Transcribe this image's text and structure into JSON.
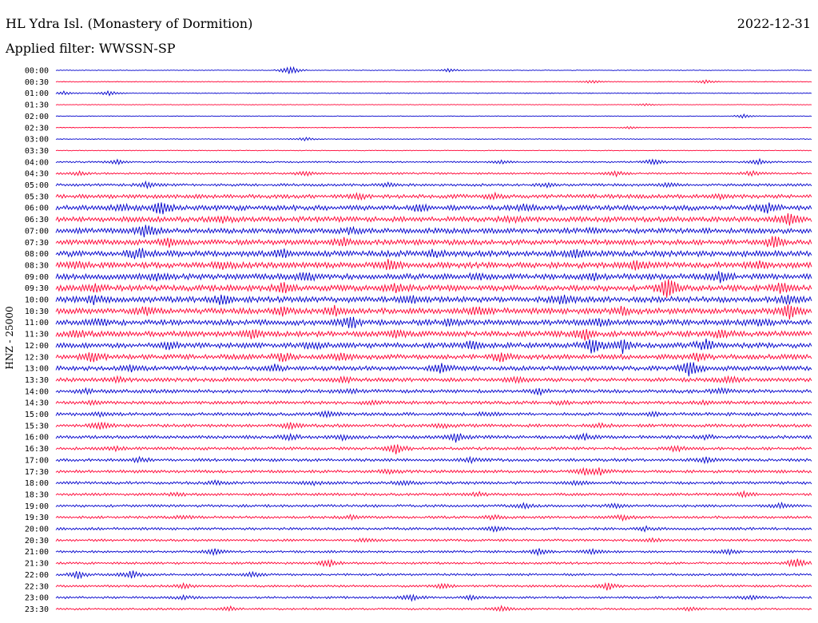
{
  "header": {
    "station": "HL Ydra Isl. (Monastery of Dormition)",
    "date": "2022-12-31",
    "filter": "Applied filter: WWSSN-SP"
  },
  "chart_data": {
    "type": "line",
    "ylabel": "HNZ - 25000",
    "colors": [
      "#0000cc",
      "#ff0033"
    ],
    "rows": [
      "00:00",
      "00:30",
      "01:00",
      "01:30",
      "02:00",
      "02:30",
      "03:00",
      "03:30",
      "04:00",
      "04:30",
      "05:00",
      "05:30",
      "06:00",
      "06:30",
      "07:00",
      "07:30",
      "08:00",
      "08:30",
      "09:00",
      "09:30",
      "10:00",
      "10:30",
      "11:00",
      "11:30",
      "12:00",
      "12:30",
      "13:00",
      "13:30",
      "14:00",
      "14:30",
      "15:00",
      "15:30",
      "16:00",
      "16:30",
      "17:00",
      "17:30",
      "18:00",
      "18:30",
      "19:00",
      "19:30",
      "20:00",
      "20:30",
      "21:00",
      "21:30",
      "22:00",
      "22:30",
      "23:00",
      "23:30"
    ],
    "noise": [
      0.4,
      0.5,
      0.5,
      0.4,
      0.4,
      0.4,
      0.5,
      0.5,
      1.0,
      1.2,
      1.6,
      2.4,
      3.2,
      3.2,
      3.2,
      3.2,
      3.6,
      3.6,
      3.6,
      3.6,
      3.6,
      3.6,
      3.4,
      3.4,
      3.2,
      3.0,
      2.8,
      2.4,
      2.2,
      2.0,
      2.0,
      2.0,
      2.0,
      1.8,
      1.8,
      1.8,
      1.8,
      1.6,
      1.6,
      1.6,
      1.6,
      1.4,
      1.4,
      1.4,
      1.4,
      1.4,
      1.4,
      1.2
    ],
    "events": [
      [
        [
          0.31,
          8
        ],
        [
          0.52,
          3
        ]
      ],
      [
        [
          0.71,
          3
        ],
        [
          0.86,
          3
        ]
      ],
      [
        [
          0.01,
          3
        ],
        [
          0.07,
          4
        ]
      ],
      [
        [
          0.78,
          2
        ]
      ],
      [
        [
          0.91,
          3
        ]
      ],
      [
        [
          0.76,
          2
        ]
      ],
      [
        [
          0.33,
          3
        ]
      ],
      [],
      [
        [
          0.08,
          4
        ],
        [
          0.59,
          3
        ],
        [
          0.79,
          5
        ],
        [
          0.93,
          4
        ]
      ],
      [
        [
          0.03,
          3
        ],
        [
          0.33,
          4
        ],
        [
          0.74,
          4
        ],
        [
          0.92,
          4
        ]
      ],
      [
        [
          0.12,
          4
        ],
        [
          0.44,
          3
        ],
        [
          0.65,
          3
        ],
        [
          0.81,
          3
        ]
      ],
      [
        [
          0.4,
          4
        ],
        [
          0.58,
          4
        ],
        [
          0.88,
          3
        ]
      ],
      [
        [
          0.09,
          4
        ],
        [
          0.14,
          10
        ],
        [
          0.48,
          6
        ],
        [
          0.62,
          5
        ],
        [
          0.94,
          8
        ]
      ],
      [
        [
          0.22,
          5
        ],
        [
          0.6,
          4
        ],
        [
          0.97,
          10
        ]
      ],
      [
        [
          0.12,
          10
        ],
        [
          0.39,
          4
        ],
        [
          0.71,
          3
        ]
      ],
      [
        [
          0.15,
          6
        ],
        [
          0.38,
          6
        ],
        [
          0.95,
          10
        ]
      ],
      [
        [
          0.11,
          8
        ],
        [
          0.3,
          6
        ],
        [
          0.5,
          5
        ],
        [
          0.69,
          5
        ]
      ],
      [
        [
          0.03,
          5
        ],
        [
          0.22,
          6
        ],
        [
          0.44,
          7
        ],
        [
          0.77,
          6
        ],
        [
          0.93,
          5
        ]
      ],
      [
        [
          0.13,
          5
        ],
        [
          0.33,
          6
        ],
        [
          0.56,
          4
        ],
        [
          0.71,
          5
        ],
        [
          0.88,
          9
        ]
      ],
      [
        [
          0.05,
          5
        ],
        [
          0.3,
          8
        ],
        [
          0.45,
          6
        ],
        [
          0.81,
          16
        ],
        [
          0.96,
          8
        ]
      ],
      [
        [
          0.05,
          6
        ],
        [
          0.22,
          8
        ],
        [
          0.47,
          6
        ],
        [
          0.67,
          7
        ],
        [
          0.97,
          7
        ]
      ],
      [
        [
          0.12,
          6
        ],
        [
          0.3,
          5
        ],
        [
          0.37,
          7
        ],
        [
          0.56,
          5
        ],
        [
          0.75,
          6
        ],
        [
          0.97,
          10
        ]
      ],
      [
        [
          0.06,
          5
        ],
        [
          0.39,
          9
        ],
        [
          0.52,
          4
        ],
        [
          0.72,
          6
        ],
        [
          0.93,
          4
        ]
      ],
      [
        [
          0.03,
          5
        ],
        [
          0.26,
          6
        ],
        [
          0.45,
          5
        ],
        [
          0.7,
          9
        ],
        [
          0.88,
          5
        ]
      ],
      [
        [
          0.15,
          5
        ],
        [
          0.34,
          5
        ],
        [
          0.55,
          6
        ],
        [
          0.71,
          12
        ],
        [
          0.75,
          10
        ],
        [
          0.86,
          9
        ]
      ],
      [
        [
          0.05,
          8
        ],
        [
          0.3,
          6
        ],
        [
          0.38,
          5
        ],
        [
          0.59,
          7
        ],
        [
          0.85,
          7
        ]
      ],
      [
        [
          0.1,
          4
        ],
        [
          0.29,
          5
        ],
        [
          0.51,
          8
        ],
        [
          0.84,
          14
        ]
      ],
      [
        [
          0.08,
          4
        ],
        [
          0.38,
          4
        ],
        [
          0.61,
          4
        ],
        [
          0.89,
          5
        ]
      ],
      [
        [
          0.04,
          3
        ],
        [
          0.39,
          3
        ],
        [
          0.64,
          4
        ],
        [
          0.88,
          4
        ]
      ],
      [
        [
          0.05,
          3
        ],
        [
          0.42,
          3
        ],
        [
          0.67,
          3
        ],
        [
          0.86,
          3
        ]
      ],
      [
        [
          0.06,
          3
        ],
        [
          0.36,
          4
        ],
        [
          0.57,
          3
        ],
        [
          0.79,
          3
        ]
      ],
      [
        [
          0.06,
          7
        ],
        [
          0.31,
          4
        ],
        [
          0.51,
          3
        ],
        [
          0.72,
          3
        ]
      ],
      [
        [
          0.31,
          4
        ],
        [
          0.38,
          4
        ],
        [
          0.53,
          7
        ],
        [
          0.7,
          4
        ],
        [
          0.86,
          3
        ]
      ],
      [
        [
          0.08,
          3
        ],
        [
          0.45,
          8
        ],
        [
          0.82,
          4
        ]
      ],
      [
        [
          0.11,
          4
        ],
        [
          0.55,
          4
        ],
        [
          0.86,
          4
        ]
      ],
      [
        [
          0.44,
          4
        ],
        [
          0.7,
          5
        ],
        [
          0.72,
          5
        ]
      ],
      [
        [
          0.21,
          3
        ],
        [
          0.34,
          3
        ],
        [
          0.46,
          3
        ],
        [
          0.69,
          3
        ]
      ],
      [
        [
          0.16,
          3
        ],
        [
          0.56,
          3
        ],
        [
          0.91,
          4
        ]
      ],
      [
        [
          0.62,
          4
        ],
        [
          0.74,
          3
        ],
        [
          0.96,
          4
        ]
      ],
      [
        [
          0.17,
          3
        ],
        [
          0.39,
          3
        ],
        [
          0.58,
          4
        ],
        [
          0.75,
          4
        ]
      ],
      [
        [
          0.58,
          4
        ],
        [
          0.78,
          3
        ]
      ],
      [
        [
          0.41,
          3
        ],
        [
          0.79,
          3
        ]
      ],
      [
        [
          0.21,
          5
        ],
        [
          0.64,
          5
        ],
        [
          0.71,
          4
        ],
        [
          0.89,
          4
        ]
      ],
      [
        [
          0.36,
          6
        ],
        [
          0.98,
          8
        ]
      ],
      [
        [
          0.03,
          6
        ],
        [
          0.1,
          6
        ],
        [
          0.26,
          4
        ]
      ],
      [
        [
          0.17,
          4
        ],
        [
          0.51,
          4
        ],
        [
          0.73,
          6
        ]
      ],
      [
        [
          0.17,
          3
        ],
        [
          0.47,
          5
        ],
        [
          0.55,
          3
        ],
        [
          0.92,
          3
        ]
      ],
      [
        [
          0.23,
          4
        ],
        [
          0.59,
          5
        ],
        [
          0.84,
          3
        ]
      ]
    ]
  }
}
